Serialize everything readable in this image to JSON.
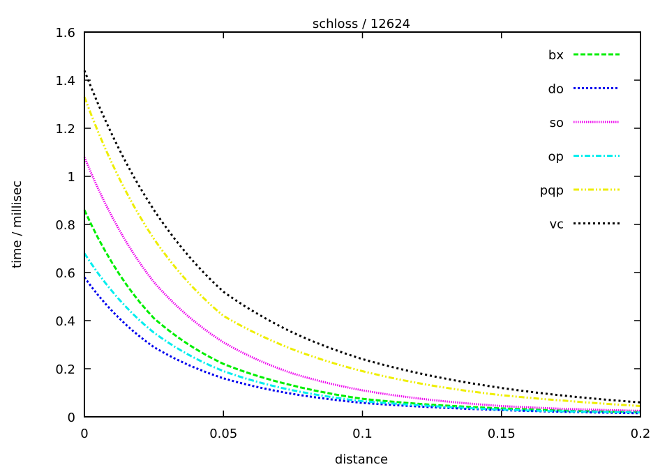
{
  "chart_data": {
    "type": "line",
    "title": "schloss / 12624",
    "xlabel": "distance",
    "ylabel": "time / millisec",
    "xlim": [
      0,
      0.2
    ],
    "ylim": [
      0,
      1.6
    ],
    "xticks": [
      "0",
      "0.05",
      "0.1",
      "0.15",
      "0.2"
    ],
    "xtick_values": [
      0,
      0.05,
      0.1,
      0.15,
      0.2
    ],
    "yticks": [
      "0",
      "0.2",
      "0.4",
      "0.6",
      "0.8",
      "1",
      "1.2",
      "1.4",
      "1.6"
    ],
    "ytick_values": [
      0,
      0.2,
      0.4,
      0.6,
      0.8,
      1,
      1.2,
      1.4,
      1.6
    ],
    "grid": false,
    "legend_position": "top-right",
    "x": [
      0,
      0.025,
      0.05,
      0.075,
      0.1,
      0.125,
      0.15,
      0.175,
      0.2
    ],
    "series": [
      {
        "name": "bx",
        "color": "#00ee00",
        "dash": "7 3",
        "values": [
          0.86,
          0.41,
          0.22,
          0.13,
          0.075,
          0.05,
          0.035,
          0.025,
          0.02
        ]
      },
      {
        "name": "do",
        "color": "#0000ee",
        "dash": "3 3",
        "values": [
          0.58,
          0.29,
          0.16,
          0.095,
          0.058,
          0.04,
          0.028,
          0.02,
          0.015
        ]
      },
      {
        "name": "so",
        "color": "#ee00ee",
        "dash": "1.5 1.5",
        "values": [
          1.08,
          0.56,
          0.31,
          0.18,
          0.11,
          0.07,
          0.045,
          0.032,
          0.025
        ]
      },
      {
        "name": "op",
        "color": "#00eeee",
        "dash": "8 3 2 3",
        "values": [
          0.68,
          0.35,
          0.19,
          0.11,
          0.065,
          0.045,
          0.03,
          0.022,
          0.018
        ]
      },
      {
        "name": "pqp",
        "color": "#eeee00",
        "dash": "8 3 2 3 2 3",
        "values": [
          1.33,
          0.74,
          0.42,
          0.28,
          0.19,
          0.13,
          0.09,
          0.065,
          0.045
        ]
      },
      {
        "name": "vc",
        "color": "#000000",
        "dash": "3 4",
        "values": [
          1.44,
          0.86,
          0.52,
          0.35,
          0.24,
          0.17,
          0.12,
          0.085,
          0.06
        ]
      }
    ]
  }
}
